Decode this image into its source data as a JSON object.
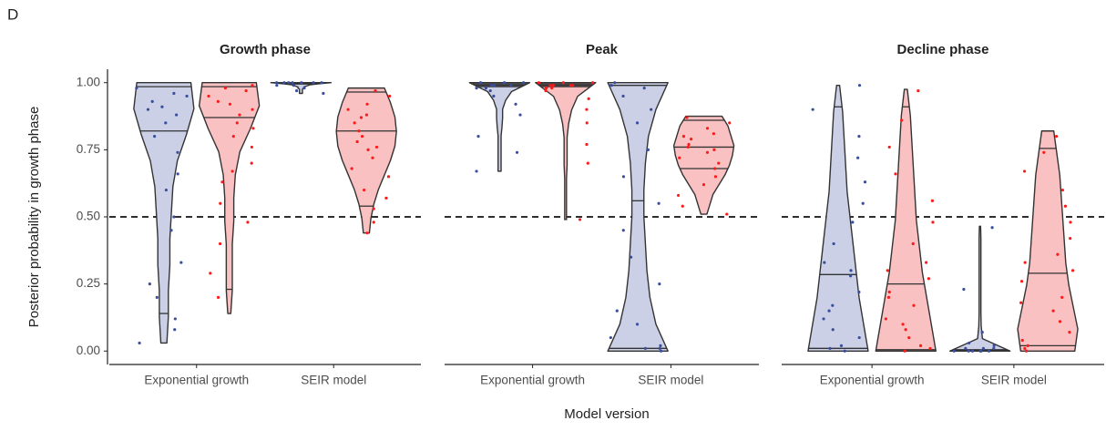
{
  "chart_data": {
    "type": "violin",
    "panel_label": "D",
    "ylabel": "Posterior probability in growth phase",
    "xlabel": "Model version",
    "ylim": [
      -0.05,
      1.05
    ],
    "yticks": [
      {
        "value": 0,
        "label": "0.00"
      },
      {
        "value": 0.25,
        "label": "0.25"
      },
      {
        "value": 0.5,
        "label": "0.50"
      },
      {
        "value": 0.75,
        "label": "0.75"
      },
      {
        "value": 1,
        "label": "1.00"
      }
    ],
    "reference_line": 0.5,
    "series_style": [
      {
        "color": "#3a4f9c",
        "fill": "#cbd0e6"
      },
      {
        "color": "#ff1a1a",
        "fill": "#f9c1c1"
      }
    ],
    "panels": [
      {
        "title": "Growth phase",
        "categories": [
          "Exponential growth",
          "SEIR model"
        ],
        "violins": [
          [
            {
              "min": 0.03,
              "max": 1.0,
              "quantiles": [
                0.14,
                0.82,
                0.985
              ],
              "density": [
                0.1,
                0.15,
                0.15,
                0.2,
                0.2,
                0.25,
                0.3,
                0.45,
                0.75,
                1.0,
                0.9
              ],
              "points": [
                0.98,
                0.95,
                0.93,
                0.9,
                0.88,
                0.85,
                0.8,
                0.74,
                0.66,
                0.6,
                0.5,
                0.45,
                0.33,
                0.25,
                0.2,
                0.12,
                0.08,
                0.03,
                0.96,
                0.91
              ]
            },
            {
              "min": 0.14,
              "max": 1.0,
              "quantiles": [
                0.23,
                0.87,
                0.985
              ],
              "density": [
                0.05,
                0.1,
                0.1,
                0.1,
                0.15,
                0.15,
                0.2,
                0.35,
                0.7,
                1.0,
                0.9
              ],
              "points": [
                0.99,
                0.97,
                0.95,
                0.92,
                0.9,
                0.88,
                0.85,
                0.8,
                0.76,
                0.7,
                0.63,
                0.55,
                0.48,
                0.4,
                0.29,
                0.2,
                0.98,
                0.93,
                0.83,
                0.67
              ]
            }
          ],
          [
            {
              "min": 0.96,
              "max": 1.0,
              "quantiles": [
                0.995,
                0.998,
                1.0
              ],
              "density": [
                0.05,
                0.05,
                0.05,
                0.05,
                0.05,
                0.1,
                0.1,
                0.2,
                0.3,
                0.6,
                1.0
              ],
              "points": [
                1.0,
                1.0,
                0.99,
                1.0,
                0.98,
                1.0,
                0.97,
                1.0,
                0.96,
                1.0,
                0.99,
                1.0
              ]
            },
            {
              "min": 0.44,
              "max": 0.98,
              "quantiles": [
                0.54,
                0.82,
                0.965
              ],
              "density": [
                0.1,
                0.15,
                0.25,
                0.4,
                0.6,
                0.8,
                0.95,
                1.0,
                0.95,
                0.8,
                0.6
              ],
              "points": [
                0.97,
                0.95,
                0.92,
                0.9,
                0.87,
                0.85,
                0.82,
                0.8,
                0.78,
                0.75,
                0.72,
                0.68,
                0.65,
                0.6,
                0.57,
                0.53,
                0.48,
                0.44,
                0.88,
                0.76
              ]
            }
          ]
        ]
      },
      {
        "title": "Peak",
        "categories": [
          "Exponential growth",
          "SEIR model"
        ],
        "violins": [
          [
            {
              "min": 0.67,
              "max": 1.0,
              "quantiles": [
                0.985,
                0.99,
                0.995
              ],
              "density": [
                0.05,
                0.05,
                0.05,
                0.05,
                0.05,
                0.08,
                0.1,
                0.1,
                0.2,
                0.4,
                1.0
              ],
              "points": [
                1.0,
                0.99,
                0.99,
                0.98,
                1.0,
                0.99,
                0.97,
                0.95,
                0.92,
                0.88,
                0.8,
                0.74,
                0.67,
                0.99,
                1.0,
                0.98
              ]
            },
            {
              "min": 0.49,
              "max": 1.0,
              "quantiles": [
                0.985,
                0.99,
                0.995
              ],
              "density": [
                0.03,
                0.03,
                0.03,
                0.03,
                0.05,
                0.05,
                0.05,
                0.1,
                0.2,
                0.4,
                1.0
              ],
              "points": [
                1.0,
                0.99,
                0.99,
                0.98,
                1.0,
                0.99,
                0.97,
                0.94,
                0.9,
                0.85,
                0.77,
                0.7,
                0.49,
                0.99,
                1.0,
                0.98
              ]
            }
          ],
          [
            {
              "min": 0.0,
              "max": 1.0,
              "quantiles": [
                0.01,
                0.56,
                0.99
              ],
              "density": [
                1.0,
                0.6,
                0.4,
                0.3,
                0.25,
                0.2,
                0.2,
                0.25,
                0.35,
                0.6,
                1.0
              ],
              "points": [
                1.0,
                0.99,
                0.98,
                0.95,
                0.9,
                0.85,
                0.75,
                0.65,
                0.55,
                0.45,
                0.35,
                0.25,
                0.15,
                0.1,
                0.05,
                0.02,
                0.01,
                0.0,
                0.99,
                0.01
              ]
            },
            {
              "min": 0.51,
              "max": 0.875,
              "quantiles": [
                0.68,
                0.76,
                0.86
              ],
              "density": [
                0.1,
                0.2,
                0.3,
                0.5,
                0.7,
                0.85,
                0.95,
                1.0,
                0.9,
                0.8,
                0.6
              ],
              "points": [
                0.87,
                0.85,
                0.83,
                0.81,
                0.79,
                0.77,
                0.76,
                0.74,
                0.72,
                0.7,
                0.68,
                0.65,
                0.62,
                0.58,
                0.54,
                0.51,
                0.8,
                0.75
              ]
            }
          ]
        ]
      },
      {
        "title": "Decline phase",
        "categories": [
          "Exponential growth",
          "SEIR model"
        ],
        "violins": [
          [
            {
              "min": 0.0,
              "max": 0.99,
              "quantiles": [
                0.01,
                0.285,
                0.91
              ],
              "density": [
                1.0,
                0.85,
                0.7,
                0.6,
                0.5,
                0.4,
                0.3,
                0.25,
                0.2,
                0.15,
                0.05
              ],
              "points": [
                0.99,
                0.9,
                0.8,
                0.72,
                0.63,
                0.55,
                0.48,
                0.4,
                0.33,
                0.28,
                0.22,
                0.17,
                0.12,
                0.08,
                0.05,
                0.02,
                0.01,
                0.0,
                0.3,
                0.15
              ]
            },
            {
              "min": 0.0,
              "max": 0.975,
              "quantiles": [
                0.005,
                0.25,
                0.91
              ],
              "density": [
                1.0,
                0.85,
                0.7,
                0.55,
                0.45,
                0.35,
                0.3,
                0.25,
                0.2,
                0.15,
                0.05
              ],
              "points": [
                0.97,
                0.86,
                0.76,
                0.66,
                0.56,
                0.48,
                0.4,
                0.33,
                0.27,
                0.22,
                0.17,
                0.12,
                0.08,
                0.05,
                0.02,
                0.01,
                0.0,
                0.2,
                0.1,
                0.3
              ]
            }
          ],
          [
            {
              "min": 0.0,
              "max": 0.465,
              "quantiles": [
                0.0,
                0.001,
                0.005
              ],
              "density": [
                1.0,
                0.08,
                0.04,
                0.03,
                0.03,
                0.03,
                0.03,
                0.03,
                0.03,
                0.03,
                0.02
              ],
              "points": [
                0.0,
                0.0,
                0.01,
                0.0,
                0.02,
                0.0,
                0.01,
                0.0,
                0.03,
                0.07,
                0.23,
                0.46,
                0.0,
                0.01
              ]
            },
            {
              "min": 0.0,
              "max": 0.82,
              "quantiles": [
                0.02,
                0.29,
                0.755
              ],
              "density": [
                0.9,
                1.0,
                0.85,
                0.7,
                0.6,
                0.55,
                0.5,
                0.45,
                0.4,
                0.3,
                0.2
              ],
              "points": [
                0.8,
                0.74,
                0.67,
                0.6,
                0.54,
                0.48,
                0.42,
                0.36,
                0.3,
                0.26,
                0.2,
                0.15,
                0.11,
                0.07,
                0.04,
                0.02,
                0.01,
                0.0,
                0.33,
                0.18
              ]
            }
          ]
        ]
      }
    ]
  }
}
